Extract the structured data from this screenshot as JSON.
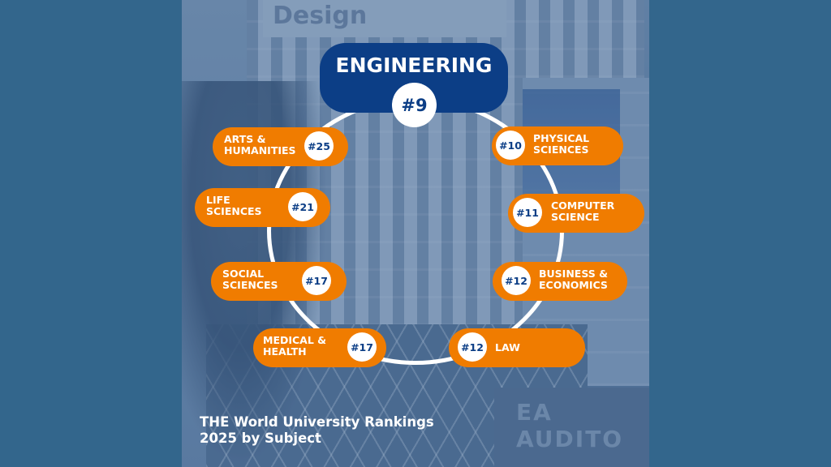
{
  "photo": {
    "sign_text": "Design",
    "auditorium_text": "EA AUDITO"
  },
  "header": {
    "title": "ENGINEERING",
    "rank": "#9"
  },
  "subjects": {
    "arts": {
      "label": "ARTS &\nHUMANITIES",
      "rank": "#25"
    },
    "life": {
      "label": "LIFE\nSCIENCES",
      "rank": "#21"
    },
    "social": {
      "label": "SOCIAL\nSCIENCES",
      "rank": "#17"
    },
    "medical": {
      "label": "MEDICAL &\nHEALTH",
      "rank": "#17"
    },
    "physical": {
      "label": "PHYSICAL\nSCIENCES",
      "rank": "#10"
    },
    "computer": {
      "label": "COMPUTER\nSCIENCE",
      "rank": "#11"
    },
    "business": {
      "label": "BUSINESS &\nECONOMICS",
      "rank": "#12"
    },
    "law": {
      "label": "LAW",
      "rank": "#12"
    }
  },
  "footer": {
    "text": "THE World University Rankings\n2025 by Subject"
  },
  "colors": {
    "background": "#33668c",
    "orange": "#f07c00",
    "navy": "#0c3e86",
    "white": "#ffffff"
  }
}
